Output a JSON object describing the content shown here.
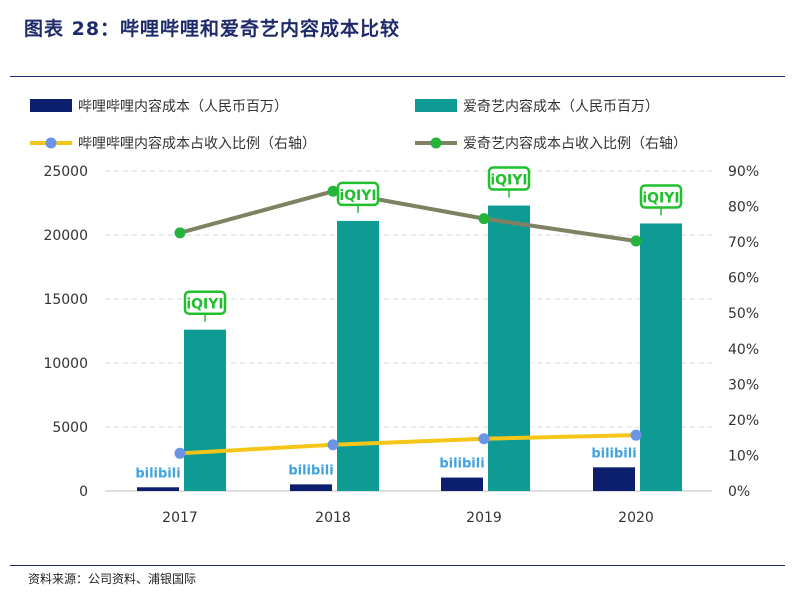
{
  "page": {
    "title": "图表 28：哔哩哔哩和爱奇艺内容成本比较",
    "source": "资料来源：公司资料、浦银国际"
  },
  "colors": {
    "bilibili_bar": "#0b1f6e",
    "iqiyi_bar": "#0e9b94",
    "bilibili_line": "#f5c518",
    "bilibili_marker": "#6b93e6",
    "iqiyi_line": "#7f8163",
    "iqiyi_marker": "#25b33b",
    "title_text": "#1f2a6b",
    "iqiyi_logo": "#1fbf2d",
    "bilibili_logo": "#3ea3e0"
  },
  "logos": {
    "iqiyi": "iQIYI",
    "bilibili": "bilibili"
  },
  "chart_data": {
    "type": "bar",
    "categories": [
      "2017",
      "2018",
      "2019",
      "2020"
    ],
    "series": [
      {
        "name": "哔哩哔哩内容成本（人民币百万）",
        "kind": "bar",
        "axis": "left",
        "values": [
          290,
          520,
          1050,
          1850
        ]
      },
      {
        "name": "爱奇艺内容成本（人民币百万）",
        "kind": "bar",
        "axis": "left",
        "values": [
          12600,
          21100,
          22300,
          20900
        ]
      },
      {
        "name": "哔哩哔哩内容成本占收入比例（右轴）",
        "kind": "line",
        "axis": "right",
        "values": [
          0.106,
          0.13,
          0.147,
          0.157
        ]
      },
      {
        "name": "爱奇艺内容成本占收入比例（右轴）",
        "kind": "line",
        "axis": "right",
        "values": [
          0.726,
          0.843,
          0.766,
          0.703
        ]
      }
    ],
    "left_axis": {
      "min": 0,
      "max": 25000,
      "ticks": [
        "0",
        "5000",
        "10000",
        "15000",
        "20000",
        "25000"
      ]
    },
    "right_axis": {
      "min": 0,
      "max": 0.9,
      "ticks": [
        "0%",
        "10%",
        "20%",
        "30%",
        "40%",
        "50%",
        "60%",
        "70%",
        "80%",
        "90%"
      ]
    },
    "grid": "horizontal",
    "legend": "top"
  }
}
